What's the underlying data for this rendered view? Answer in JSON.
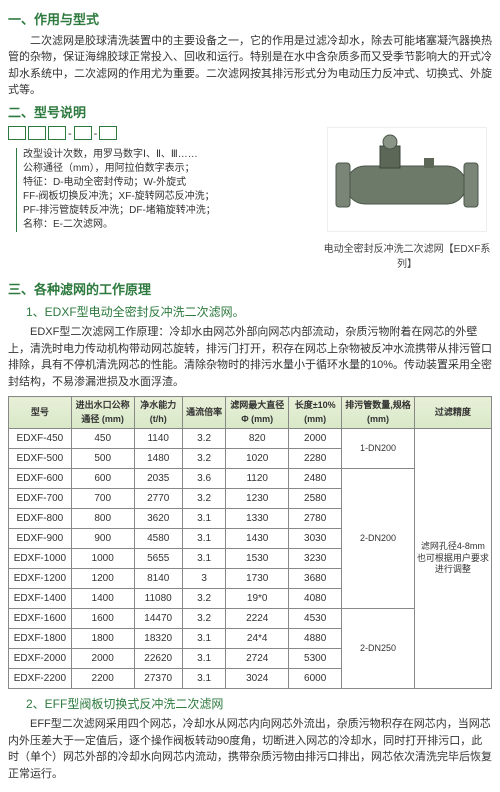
{
  "sec1_title": "一、作用与型式",
  "sec1_p": "二次滤网是胶球清洗装置中的主要设备之一，它的作用是过滤冷却水，除去可能堵塞凝汽器换热管的杂物，保证海绵胶球正常投入、回收和运行。特别是在水中含杂质多而又受季节影响大的开式冷却水系统中，二次滤网的作用尤为重要。二次滤网按其排污形式分为电动压力反冲式、切换式、外旋式等。",
  "sec2_title": "二、型号说明",
  "model_lines": [
    "改型设计次数，用罗马数字Ⅰ、Ⅱ、Ⅲ……",
    "公称通径（mm），用阿拉伯数字表示；",
    "特征：D-电动全密封传动；W-外旋式",
    "FF-阀板切换反冲洗；XF-旋转网芯反冲洗；",
    "PF-排污管旋转反冲洗；DF-堵箱旋转冲洗；",
    "名称：E-二次滤网。"
  ],
  "img_caption": "电动全密封反冲洗二次滤网【EDXF系列】",
  "sec3_title": "三、各种滤网的工作原理",
  "sub1": "1、EDXF型电动全密封反冲洗二次滤网。",
  "sub1_p": "EDXF型二次滤网工作原理：冷却水由网芯外部向网芯内部流动，杂质污物附着在网芯的外壁上，清洗时电力传动机构带动网芯旋转，排污门打开，积存在网芯上杂物被反冲水流携带从排污管口排除，具有不停机清洗网芯的性能。清除杂物时的排污水量小于循环水量的10%。传动装置采用全密封结构，不易渗漏泄损及水面浮渣。",
  "table": {
    "head": [
      "型号",
      "进出水口公称通径 (mm)",
      "净水能力 (t/h)",
      "通流倍率",
      "滤网最大直径Φ (mm)",
      "长度±10% (mm)",
      "排污管数量,规格 (mm)",
      "过滤精度"
    ],
    "pipe1": "1-DN200",
    "pipe2": "2-DN200",
    "pipe3": "2-DN250",
    "side_note": "滤网孔径4-8mm也可根据用户要求进行调整",
    "rows": [
      [
        "EDXF-450",
        "450",
        "1140",
        "3.2",
        "820",
        "2000"
      ],
      [
        "EDXF-500",
        "500",
        "1480",
        "3.2",
        "1020",
        "2280"
      ],
      [
        "EDXF-600",
        "600",
        "2035",
        "3.6",
        "1120",
        "2480"
      ],
      [
        "EDXF-700",
        "700",
        "2770",
        "3.2",
        "1230",
        "2580"
      ],
      [
        "EDXF-800",
        "800",
        "3620",
        "3.1",
        "1330",
        "2780"
      ],
      [
        "EDXF-900",
        "900",
        "4580",
        "3.1",
        "1430",
        "3030"
      ],
      [
        "EDXF-1000",
        "1000",
        "5655",
        "3.1",
        "1530",
        "3230"
      ],
      [
        "EDXF-1200",
        "1200",
        "8140",
        "3",
        "1730",
        "3680"
      ],
      [
        "EDXF-1400",
        "1400",
        "11080",
        "3.2",
        "19*0",
        "4080"
      ],
      [
        "EDXF-1600",
        "1600",
        "14470",
        "3.2",
        "2224",
        "4530"
      ],
      [
        "EDXF-1800",
        "1800",
        "18320",
        "3.1",
        "24*4",
        "4880"
      ],
      [
        "EDXF-2000",
        "2000",
        "22620",
        "3.1",
        "2724",
        "5300"
      ],
      [
        "EDXF-2200",
        "2200",
        "27370",
        "3.1",
        "3024",
        "6000"
      ]
    ]
  },
  "sub2": "2、EFF型阀板切换式反冲洗二次滤网",
  "sub2_p": "EFF型二次滤网采用四个网芯，冷却水从网芯内向网芯外流出，杂质污物积存在网芯内，当网芯内外压差大于一定值后，逐个操作阀板转动90度角，切断进入网芯的冷却水，同时打开排污口，此时（单个）网芯外部的冷却水向网芯内流动，携带杂质污物由排污口排出，网芯依次清洗完毕后恢复正常运行。"
}
